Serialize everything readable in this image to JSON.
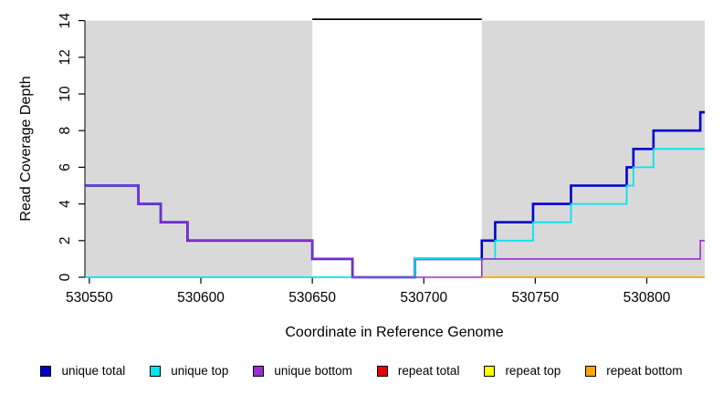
{
  "axes": {
    "y_title": "Read Coverage Depth",
    "x_title": "Coordinate in Reference Genome"
  },
  "chart_data": {
    "type": "line",
    "subtype": "step",
    "title": "",
    "xlabel": "Coordinate in Reference Genome",
    "ylabel": "Read Coverage Depth",
    "xlim": [
      530548,
      530826
    ],
    "ylim": [
      0,
      14
    ],
    "x_ticks": [
      530550,
      530600,
      530650,
      530700,
      530750,
      530800
    ],
    "y_ticks": [
      0,
      2,
      4,
      6,
      8,
      10,
      12,
      14
    ],
    "grid": false,
    "legend_position": "bottom",
    "shade_color": "#D9D9D9",
    "shaded_unique_regions": [
      [
        530548,
        530650
      ],
      [
        530726,
        530826
      ]
    ],
    "repeat_gap_region": [
      530650,
      530726
    ],
    "clipped_overflow_line": {
      "color": "#000000",
      "y": 14,
      "from": 530650,
      "to": 530726
    },
    "series": [
      {
        "name": "unique total",
        "color": "#0000CC",
        "width": 2.6,
        "steps": [
          [
            530548,
            5
          ],
          [
            530572,
            4
          ],
          [
            530582,
            3
          ],
          [
            530594,
            2
          ],
          [
            530650,
            1
          ],
          [
            530668,
            0
          ],
          [
            530696,
            1
          ],
          [
            530726,
            2
          ],
          [
            530732,
            3
          ],
          [
            530749,
            4
          ],
          [
            530766,
            5
          ],
          [
            530791,
            6
          ],
          [
            530794,
            7
          ],
          [
            530803,
            8
          ],
          [
            530824,
            9
          ]
        ],
        "end": 530826
      },
      {
        "name": "unique top",
        "color": "#00E5EE",
        "width": 1.8,
        "steps": [
          [
            530548,
            0
          ],
          [
            530696,
            1
          ],
          [
            530732,
            2
          ],
          [
            530749,
            3
          ],
          [
            530766,
            4
          ],
          [
            530791,
            5
          ],
          [
            530794,
            6
          ],
          [
            530803,
            7
          ]
        ],
        "end": 530826
      },
      {
        "name": "unique bottom",
        "color": "#9932CC",
        "width": 1.6,
        "steps": [
          [
            530548,
            5
          ],
          [
            530572,
            4
          ],
          [
            530582,
            3
          ],
          [
            530594,
            2
          ],
          [
            530650,
            1
          ],
          [
            530668,
            0
          ],
          [
            530726,
            1
          ],
          [
            530824,
            2
          ]
        ],
        "end": 530826
      },
      {
        "name": "repeat total",
        "color": "#EE0000",
        "width": 1.6,
        "steps": [],
        "end": null
      },
      {
        "name": "repeat top",
        "color": "#FFFF00",
        "width": 1.6,
        "steps": [],
        "end": null
      },
      {
        "name": "repeat bottom",
        "color": "#FFA500",
        "width": 1.8,
        "steps": [
          [
            530726,
            0
          ]
        ],
        "end": 530826
      }
    ]
  },
  "legend": {
    "items": [
      {
        "label": "unique total",
        "color": "#0000CC"
      },
      {
        "label": "unique top",
        "color": "#00E5EE"
      },
      {
        "label": "unique bottom",
        "color": "#9932CC"
      },
      {
        "label": "repeat total",
        "color": "#EE0000"
      },
      {
        "label": "repeat top",
        "color": "#FFFF00"
      },
      {
        "label": "repeat bottom",
        "color": "#FFA500"
      }
    ]
  }
}
